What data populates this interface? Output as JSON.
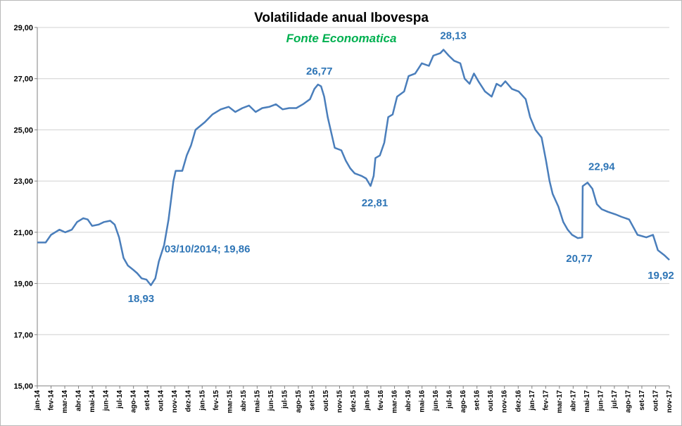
{
  "chart_data": {
    "type": "line",
    "title": "Volatilidade anual Ibovespa",
    "subtitle": "Fonte Economatica",
    "xlabel": "",
    "ylabel": "",
    "ylim": [
      15,
      29
    ],
    "y_ticks": [
      "15,00",
      "17,00",
      "19,00",
      "21,00",
      "23,00",
      "25,00",
      "27,00",
      "29,00"
    ],
    "x_ticks": [
      "jan-14",
      "fev-14",
      "mar-14",
      "abr-14",
      "mai-14",
      "jun-14",
      "jul-14",
      "ago-14",
      "set-14",
      "out-14",
      "nov-14",
      "dez-14",
      "jan-15",
      "fev-15",
      "mar-15",
      "abr-15",
      "mai-15",
      "jun-15",
      "jul-15",
      "ago-15",
      "set-15",
      "out-15",
      "nov-15",
      "dez-15",
      "jan-16",
      "fev-16",
      "mar-16",
      "abr-16",
      "mai-16",
      "jun-16",
      "jul-16",
      "ago-16",
      "set-16",
      "out-16",
      "nov-16",
      "dez-16",
      "jan-17",
      "fev-17",
      "mar-17",
      "abr-17",
      "mai-17",
      "jun-17",
      "jul-17",
      "ago-17",
      "set-17",
      "out-17",
      "nov-17"
    ],
    "grid": "horizontal",
    "legend": "none",
    "line_color": "#4a7ebb",
    "annotation_color": "#2e75b6",
    "series": [
      {
        "values": [
          [
            "2014-01-01",
            20.6
          ],
          [
            "2014-01-20",
            20.6
          ],
          [
            "2014-02-01",
            20.9
          ],
          [
            "2014-02-20",
            21.1
          ],
          [
            "2014-03-05",
            21.0
          ],
          [
            "2014-03-20",
            21.1
          ],
          [
            "2014-04-01",
            21.4
          ],
          [
            "2014-04-15",
            21.55
          ],
          [
            "2014-04-25",
            21.5
          ],
          [
            "2014-05-05",
            21.25
          ],
          [
            "2014-05-20",
            21.3
          ],
          [
            "2014-06-01",
            21.4
          ],
          [
            "2014-06-15",
            21.45
          ],
          [
            "2014-06-25",
            21.3
          ],
          [
            "2014-07-05",
            20.8
          ],
          [
            "2014-07-15",
            20.0
          ],
          [
            "2014-07-25",
            19.7
          ],
          [
            "2014-08-05",
            19.55
          ],
          [
            "2014-08-15",
            19.4
          ],
          [
            "2014-08-25",
            19.2
          ],
          [
            "2014-09-05",
            19.15
          ],
          [
            "2014-09-15",
            18.93
          ],
          [
            "2014-09-25",
            19.2
          ],
          [
            "2014-10-03",
            19.86
          ],
          [
            "2014-10-15",
            20.5
          ],
          [
            "2014-10-25",
            21.5
          ],
          [
            "2014-11-05",
            23.0
          ],
          [
            "2014-11-10",
            23.4
          ],
          [
            "2014-11-25",
            23.4
          ],
          [
            "2014-12-05",
            24.0
          ],
          [
            "2014-12-15",
            24.4
          ],
          [
            "2014-12-25",
            25.0
          ],
          [
            "2015-01-15",
            25.3
          ],
          [
            "2015-02-01",
            25.6
          ],
          [
            "2015-02-20",
            25.8
          ],
          [
            "2015-03-10",
            25.9
          ],
          [
            "2015-03-25",
            25.7
          ],
          [
            "2015-04-10",
            25.85
          ],
          [
            "2015-04-25",
            25.95
          ],
          [
            "2015-05-10",
            25.7
          ],
          [
            "2015-05-25",
            25.85
          ],
          [
            "2015-06-10",
            25.9
          ],
          [
            "2015-06-25",
            26.0
          ],
          [
            "2015-07-10",
            25.8
          ],
          [
            "2015-07-25",
            25.85
          ],
          [
            "2015-08-10",
            25.85
          ],
          [
            "2015-08-25",
            26.0
          ],
          [
            "2015-09-10",
            26.2
          ],
          [
            "2015-09-20",
            26.6
          ],
          [
            "2015-09-28",
            26.77
          ],
          [
            "2015-10-05",
            26.7
          ],
          [
            "2015-10-12",
            26.3
          ],
          [
            "2015-10-20",
            25.5
          ],
          [
            "2015-10-28",
            24.9
          ],
          [
            "2015-11-05",
            24.3
          ],
          [
            "2015-11-20",
            24.2
          ],
          [
            "2015-11-30",
            23.8
          ],
          [
            "2015-12-10",
            23.5
          ],
          [
            "2015-12-20",
            23.3
          ],
          [
            "2016-01-05",
            23.2
          ],
          [
            "2016-01-15",
            23.1
          ],
          [
            "2016-01-25",
            22.81
          ],
          [
            "2016-02-01",
            23.2
          ],
          [
            "2016-02-05",
            23.9
          ],
          [
            "2016-02-15",
            24.0
          ],
          [
            "2016-02-25",
            24.5
          ],
          [
            "2016-03-05",
            25.5
          ],
          [
            "2016-03-15",
            25.6
          ],
          [
            "2016-03-25",
            26.3
          ],
          [
            "2016-04-10",
            26.5
          ],
          [
            "2016-04-20",
            27.1
          ],
          [
            "2016-05-05",
            27.2
          ],
          [
            "2016-05-20",
            27.6
          ],
          [
            "2016-06-05",
            27.5
          ],
          [
            "2016-06-15",
            27.9
          ],
          [
            "2016-07-01",
            28.0
          ],
          [
            "2016-07-08",
            28.13
          ],
          [
            "2016-07-20",
            27.9
          ],
          [
            "2016-08-01",
            27.7
          ],
          [
            "2016-08-15",
            27.6
          ],
          [
            "2016-08-25",
            27.0
          ],
          [
            "2016-09-05",
            26.8
          ],
          [
            "2016-09-15",
            27.2
          ],
          [
            "2016-09-25",
            26.9
          ],
          [
            "2016-10-10",
            26.5
          ],
          [
            "2016-10-25",
            26.3
          ],
          [
            "2016-11-05",
            26.8
          ],
          [
            "2016-11-15",
            26.7
          ],
          [
            "2016-11-25",
            26.9
          ],
          [
            "2016-12-10",
            26.6
          ],
          [
            "2016-12-25",
            26.5
          ],
          [
            "2017-01-10",
            26.2
          ],
          [
            "2017-01-20",
            25.5
          ],
          [
            "2017-02-01",
            25.0
          ],
          [
            "2017-02-15",
            24.7
          ],
          [
            "2017-02-25",
            23.8
          ],
          [
            "2017-03-05",
            23.0
          ],
          [
            "2017-03-12",
            22.5
          ],
          [
            "2017-03-25",
            22.0
          ],
          [
            "2017-04-05",
            21.4
          ],
          [
            "2017-04-15",
            21.1
          ],
          [
            "2017-04-25",
            20.9
          ],
          [
            "2017-05-08",
            20.77
          ],
          [
            "2017-05-18",
            20.8
          ],
          [
            "2017-05-19",
            22.8
          ],
          [
            "2017-05-30",
            22.94
          ],
          [
            "2017-06-10",
            22.7
          ],
          [
            "2017-06-20",
            22.1
          ],
          [
            "2017-07-01",
            21.9
          ],
          [
            "2017-07-15",
            21.8
          ],
          [
            "2017-08-01",
            21.7
          ],
          [
            "2017-08-15",
            21.6
          ],
          [
            "2017-09-01",
            21.5
          ],
          [
            "2017-09-20",
            20.9
          ],
          [
            "2017-10-10",
            20.8
          ],
          [
            "2017-10-25",
            20.9
          ],
          [
            "2017-11-05",
            20.3
          ],
          [
            "2017-11-20",
            20.1
          ],
          [
            "2017-12-01",
            19.92
          ]
        ]
      }
    ],
    "annotations": [
      {
        "x": "2014-09-15",
        "y": 18.93,
        "text": "18,93"
      },
      {
        "x": "2014-10-03",
        "y": 19.86,
        "text": "03/10/2014; 19,86"
      },
      {
        "x": "2015-09-28",
        "y": 26.77,
        "text": "26,77"
      },
      {
        "x": "2016-01-25",
        "y": 22.81,
        "text": "22,81"
      },
      {
        "x": "2016-07-08",
        "y": 28.13,
        "text": "28,13"
      },
      {
        "x": "2017-05-08",
        "y": 20.77,
        "text": "20,77"
      },
      {
        "x": "2017-05-30",
        "y": 22.94,
        "text": "22,94"
      },
      {
        "x": "2017-12-01",
        "y": 19.92,
        "text": "19,92"
      }
    ]
  }
}
